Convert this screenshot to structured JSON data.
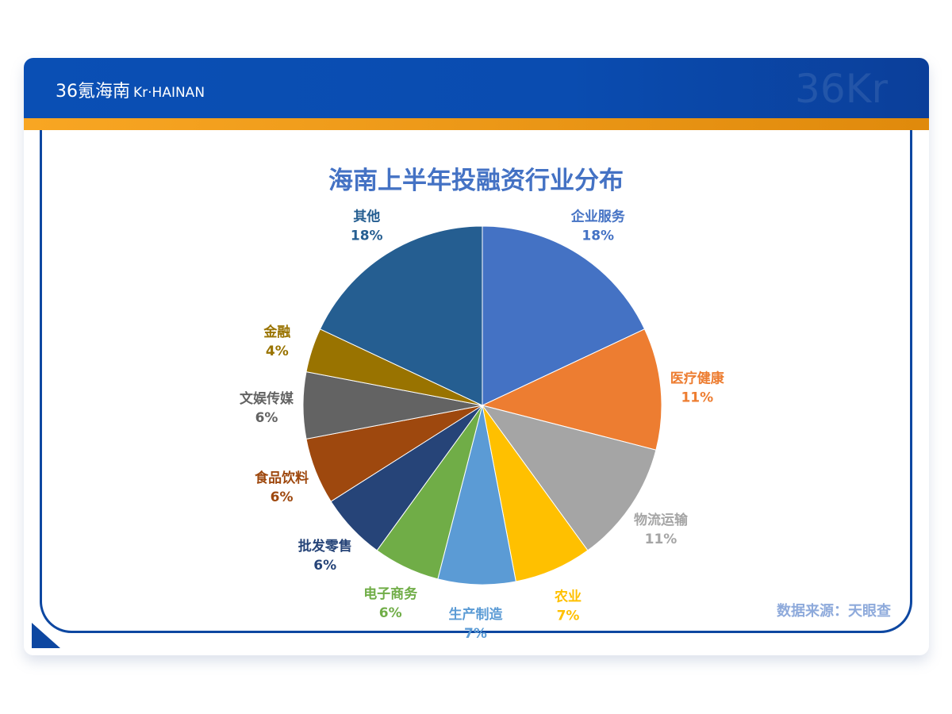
{
  "header": {
    "brand": "36氪海南",
    "brand_sub": "Kr·HAINAN",
    "watermark": "36Kr"
  },
  "footer": {
    "source": "数据来源：天眼查"
  },
  "chart_data": {
    "type": "pie",
    "title": "海南上半年投融资行业分布",
    "start": "top",
    "direction": "clockwise",
    "slices": [
      {
        "label": "企业服务",
        "value": 18,
        "text": "18%",
        "color": "#4472c4"
      },
      {
        "label": "医疗健康",
        "value": 11,
        "text": "11%",
        "color": "#ed7d31"
      },
      {
        "label": "物流运输",
        "value": 11,
        "text": "11%",
        "color": "#a5a5a5"
      },
      {
        "label": "农业",
        "value": 7,
        "text": "7%",
        "color": "#ffc000"
      },
      {
        "label": "生产制造",
        "value": 7,
        "text": "7%",
        "color": "#5b9bd5"
      },
      {
        "label": "电子商务",
        "value": 6,
        "text": "6%",
        "color": "#70ad47"
      },
      {
        "label": "批发零售",
        "value": 6,
        "text": "6%",
        "color": "#264478"
      },
      {
        "label": "食品饮料",
        "value": 6,
        "text": "6%",
        "color": "#9e480e"
      },
      {
        "label": "文娱传媒",
        "value": 6,
        "text": "6%",
        "color": "#636363"
      },
      {
        "label": "金融",
        "value": 4,
        "text": "4%",
        "color": "#997300"
      },
      {
        "label": "其他",
        "value": 18,
        "text": "18%",
        "color": "#255e91"
      }
    ]
  }
}
